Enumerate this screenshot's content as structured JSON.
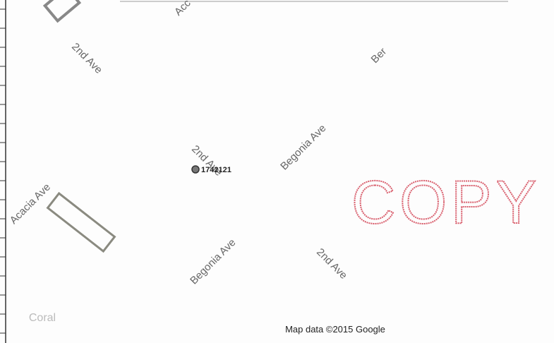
{
  "map": {
    "streets": [
      "Acc",
      "2nd Ave",
      "Ber",
      "2nd Ave",
      "Begonia Ave",
      "Acacia Ave",
      "Begonia Ave",
      "2nd Ave",
      "Coral"
    ],
    "marker": {
      "label": "1742121"
    },
    "stamp": "COPY",
    "attribution": "Map data ©2015 Google"
  }
}
